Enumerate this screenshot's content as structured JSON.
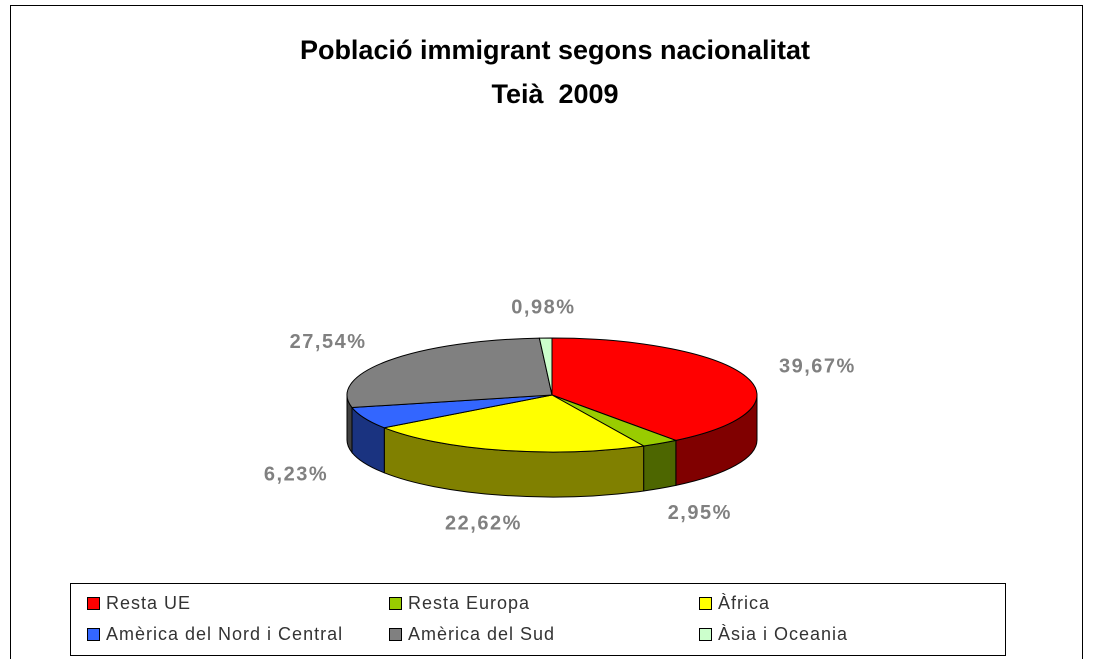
{
  "chart_data": {
    "type": "pie3d",
    "title": "Població immigrant segons nacionalitat",
    "subtitle": "Teià  2009",
    "categories": [
      "Resta UE",
      "Resta Europa",
      "Àfrica",
      "Amèrica del Nord i Central",
      "Amèrica del Sud",
      "Àsia i Oceania"
    ],
    "values": [
      39.67,
      2.95,
      22.62,
      6.23,
      27.54,
      0.98
    ],
    "value_labels": [
      "39,67%",
      "2,95%",
      "22,62%",
      "6,23%",
      "27,54%",
      "0,98%"
    ],
    "colors": [
      "#ff0000",
      "#99cc00",
      "#ffff00",
      "#3366ff",
      "#808080",
      "#ccffcc"
    ],
    "side_colors": [
      "#800000",
      "#4d6600",
      "#808000",
      "#1a3380",
      "#404040",
      "#669966"
    ],
    "legend": "bottom"
  }
}
